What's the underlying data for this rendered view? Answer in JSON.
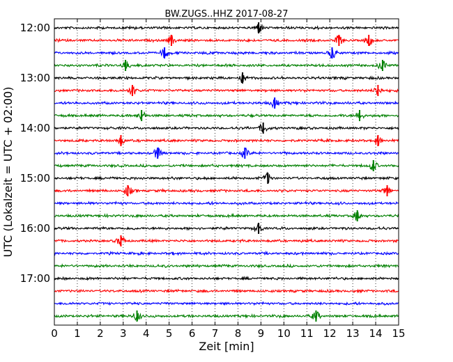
{
  "chart_data": {
    "type": "line",
    "title": "BW.ZUGS..HHZ 2017-08-27",
    "xlabel": "Zeit  [min]",
    "ylabel": "UTC (Lokalzeit = UTC + 02:00)",
    "xlim": [
      0,
      15
    ],
    "x_ticks": [
      "0",
      "1",
      "2",
      "3",
      "4",
      "5",
      "6",
      "7",
      "8",
      "9",
      "10",
      "11",
      "12",
      "13",
      "14",
      "15"
    ],
    "y_tick_labels": [
      "12:00",
      "13:00",
      "14:00",
      "15:00",
      "16:00",
      "17:00"
    ],
    "trace_interval_min": 15,
    "grid": "vertical dotted lines at each minute",
    "colors": [
      "#000000",
      "#ff0000",
      "#0000ff",
      "#008000"
    ],
    "series": [
      {
        "start": "12:00",
        "events_min": [
          8.9
        ]
      },
      {
        "start": "12:15",
        "events_min": [
          5.1,
          12.4,
          13.7
        ]
      },
      {
        "start": "12:30",
        "events_min": [
          4.8,
          12.1
        ]
      },
      {
        "start": "12:45",
        "events_min": [
          3.1,
          14.3
        ]
      },
      {
        "start": "13:00",
        "events_min": [
          8.2
        ]
      },
      {
        "start": "13:15",
        "events_min": [
          3.4,
          14.1
        ]
      },
      {
        "start": "13:30",
        "events_min": [
          9.6
        ]
      },
      {
        "start": "13:45",
        "events_min": [
          3.8,
          13.3
        ]
      },
      {
        "start": "14:00",
        "events_min": [
          9.1
        ]
      },
      {
        "start": "14:15",
        "events_min": [
          2.9,
          14.1
        ]
      },
      {
        "start": "14:30",
        "events_min": [
          4.5,
          8.3
        ]
      },
      {
        "start": "14:45",
        "events_min": [
          13.9
        ]
      },
      {
        "start": "15:00",
        "events_min": [
          9.3
        ]
      },
      {
        "start": "15:15",
        "events_min": [
          3.2,
          14.5
        ]
      },
      {
        "start": "15:30",
        "events_min": []
      },
      {
        "start": "15:45",
        "events_min": [
          13.2
        ]
      },
      {
        "start": "16:00",
        "events_min": [
          8.9
        ]
      },
      {
        "start": "16:15",
        "events_min": [
          2.9
        ]
      },
      {
        "start": "16:30",
        "events_min": []
      },
      {
        "start": "16:45",
        "events_min": []
      },
      {
        "start": "17:00",
        "events_min": []
      },
      {
        "start": "17:15",
        "events_min": []
      },
      {
        "start": "17:30",
        "events_min": []
      },
      {
        "start": "17:45",
        "events_min": [
          3.6,
          11.4
        ]
      }
    ]
  }
}
